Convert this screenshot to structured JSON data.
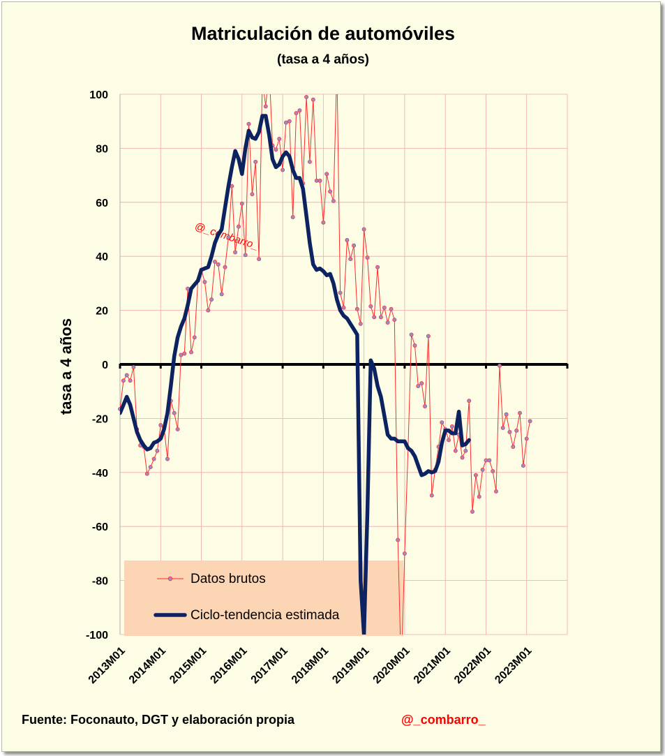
{
  "footer": {
    "source": "Fuente: Foconauto,  DGT y elaboración  propia",
    "handle": "@_combarro_"
  },
  "watermark": "@_combarro_",
  "colors": {
    "background": "#fcfde4",
    "raw_series": "#ff2a2a",
    "raw_marker": "#9a8cc8",
    "trend_series": "#0d2361",
    "grid": "#f0a8a8",
    "legend_box": "#fcd5b5",
    "handle": "#ff0000"
  },
  "chart_data": {
    "type": "line",
    "title": "Matriculación de automóviles",
    "subtitle": "(tasa a 4 años)",
    "ylabel": "tasa a 4 años",
    "xlabel": "",
    "ylim": [
      -100,
      100
    ],
    "y_ticks": [
      100,
      80,
      60,
      40,
      20,
      0,
      -20,
      -40,
      -60,
      -80,
      -100
    ],
    "x_ticks": [
      "2013M01",
      "2014M01",
      "2015M01",
      "2016M01",
      "2017M01",
      "2018M01",
      "2019M01",
      "2020M01",
      "2021M01",
      "2022M01",
      "2023M01"
    ],
    "x_start": "2013M01",
    "x_end": "2024M01",
    "grid": true,
    "legend_position": "bottom-left",
    "series": [
      {
        "name": "Datos brutos",
        "style": "thin-line-with-markers",
        "values": [
          -16.5,
          -6,
          -4,
          -6,
          -1,
          -24,
          -30,
          -30.5,
          -40.5,
          -38,
          -35,
          -32,
          -22.5,
          -23.5,
          -35,
          -13.5,
          -18,
          -24,
          3.5,
          4,
          28,
          4.5,
          10,
          31,
          35,
          30.5,
          20,
          24,
          38,
          37,
          26,
          36,
          47,
          66,
          41.5,
          51,
          59.5,
          40.5,
          89,
          63,
          75,
          39,
          105,
          95.5,
          110,
          81,
          79.5,
          83.5,
          72,
          89.5,
          90,
          54.5,
          93,
          94,
          67,
          99,
          75,
          98,
          68,
          68,
          52.5,
          70.5,
          64,
          60.5,
          110,
          26.5,
          21,
          46,
          39,
          44,
          20.5,
          15,
          50,
          39.5,
          21.5,
          17.5,
          36,
          17.5,
          21,
          15.5,
          20.5,
          16.5,
          -65,
          -115,
          -70,
          -31,
          11,
          7,
          -8,
          -7,
          -15.5,
          10.5,
          -48.5,
          -39,
          -30.5,
          -21.5,
          -24,
          -28,
          -23,
          -32,
          -26,
          -34.5,
          -32,
          -13.5,
          -54.5,
          -41,
          -49,
          -39,
          -35.5,
          -35.5,
          -39.5,
          -47,
          -0.5,
          -23.5,
          -18.5,
          -25,
          -30.5,
          -24.5,
          -18,
          -37.5,
          -27.5,
          -21
        ]
      },
      {
        "name": "Ciclo-tendencia estimada",
        "style": "thick-line",
        "values": [
          -18,
          -15,
          -12,
          -15,
          -20,
          -25,
          -28,
          -30,
          -31.5,
          -31,
          -29,
          -28.5,
          -27.5,
          -24,
          -18,
          -8,
          3,
          10,
          14,
          17,
          22,
          28,
          29.5,
          31,
          35,
          35.5,
          36,
          40,
          45,
          48,
          50,
          58,
          66,
          73,
          79,
          76,
          70.5,
          80,
          86.5,
          84,
          83.5,
          86,
          92,
          92,
          85,
          76,
          73,
          74,
          77,
          78.5,
          77,
          72,
          69,
          69,
          65,
          55,
          45,
          37,
          35,
          35.5,
          34.5,
          33,
          33.5,
          30,
          24,
          20,
          18,
          17,
          15,
          13,
          11,
          -80,
          -100,
          -55,
          1.5,
          -1.5,
          -8,
          -12,
          -19,
          -26,
          -27.5,
          -27.5,
          -28.5,
          -28.5,
          -28.5,
          -31,
          -32,
          -34,
          -37.5,
          -41,
          -40.5,
          -39.5,
          -40,
          -39.5,
          -36,
          -29,
          -24.5,
          -24.5,
          -25.5,
          -25.5,
          -17.5,
          -30,
          -29.5,
          -28
        ]
      }
    ]
  }
}
